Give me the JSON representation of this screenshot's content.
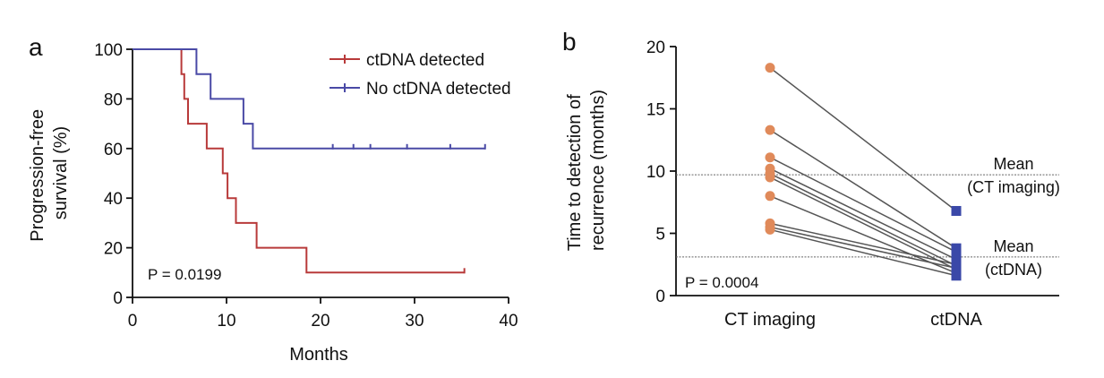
{
  "chart_data": [
    {
      "panel": "a",
      "type": "line",
      "xlabel": "Months",
      "ylabel": "Progression-free survival (%)",
      "ylabel_lines": [
        "Progression-free",
        "survival (%)"
      ],
      "xlim": [
        0,
        40
      ],
      "ylim": [
        0,
        100
      ],
      "xticks": [
        0,
        10,
        20,
        30,
        40
      ],
      "yticks": [
        0,
        20,
        40,
        60,
        80,
        100
      ],
      "legend_position": "top-right",
      "annotation": "P = 0.0199",
      "series": [
        {
          "name": "ctDNA detected",
          "color": "#b83a3a",
          "steps": [
            [
              0,
              100
            ],
            [
              5.2,
              100
            ],
            [
              5.2,
              90
            ],
            [
              5.5,
              90
            ],
            [
              5.5,
              80
            ],
            [
              5.9,
              80
            ],
            [
              5.9,
              70
            ],
            [
              7.9,
              70
            ],
            [
              7.9,
              60
            ],
            [
              9.6,
              60
            ],
            [
              9.6,
              50
            ],
            [
              10.1,
              50
            ],
            [
              10.1,
              40
            ],
            [
              11.0,
              40
            ],
            [
              11.0,
              30
            ],
            [
              13.2,
              30
            ],
            [
              13.2,
              20
            ],
            [
              18.5,
              20
            ],
            [
              18.5,
              10
            ],
            [
              35.3,
              10
            ]
          ],
          "censored": [
            [
              35.3,
              10
            ]
          ]
        },
        {
          "name": "No ctDNA detected",
          "color": "#4a4aa6",
          "steps": [
            [
              0,
              100
            ],
            [
              6.8,
              100
            ],
            [
              6.8,
              90
            ],
            [
              8.3,
              90
            ],
            [
              8.3,
              80
            ],
            [
              11.8,
              80
            ],
            [
              11.8,
              70
            ],
            [
              12.8,
              70
            ],
            [
              12.8,
              60
            ],
            [
              37.5,
              60
            ]
          ],
          "censored": [
            [
              21.3,
              60
            ],
            [
              23.5,
              60
            ],
            [
              25.3,
              60
            ],
            [
              29.2,
              60
            ],
            [
              33.8,
              60
            ],
            [
              37.5,
              60
            ]
          ]
        }
      ]
    },
    {
      "panel": "b",
      "type": "scatter",
      "ylabel": "Time to detection of recurrence (months)",
      "ylabel_lines": [
        "Time to detection of",
        "recurrence (months)"
      ],
      "categories": [
        "CT imaging",
        "ctDNA"
      ],
      "ylim": [
        0,
        20
      ],
      "yticks": [
        0,
        5,
        10,
        15,
        20
      ],
      "annotation": "P = 0.0004",
      "mean_lines": [
        {
          "value": 9.7,
          "label_lines": [
            "Mean",
            "(CT imaging)"
          ]
        },
        {
          "value": 3.1,
          "label_lines": [
            "Mean",
            "(ctDNA)"
          ]
        }
      ],
      "point_colors": {
        "CT imaging": "#e08a5a",
        "ctDNA": "#3a48a8"
      },
      "line_color": "#555555",
      "pairs": [
        {
          "ct": 18.3,
          "ctdna": 6.8
        },
        {
          "ct": 13.3,
          "ctdna": 3.8
        },
        {
          "ct": 11.1,
          "ctdna": 3.5
        },
        {
          "ct": 10.2,
          "ctdna": 2.9
        },
        {
          "ct": 9.8,
          "ctdna": 2.4
        },
        {
          "ct": 9.5,
          "ctdna": 2.1
        },
        {
          "ct": 8.0,
          "ctdna": 1.8
        },
        {
          "ct": 5.8,
          "ctdna": 2.5
        },
        {
          "ct": 5.5,
          "ctdna": 2.2
        },
        {
          "ct": 5.3,
          "ctdna": 1.6
        }
      ]
    }
  ]
}
